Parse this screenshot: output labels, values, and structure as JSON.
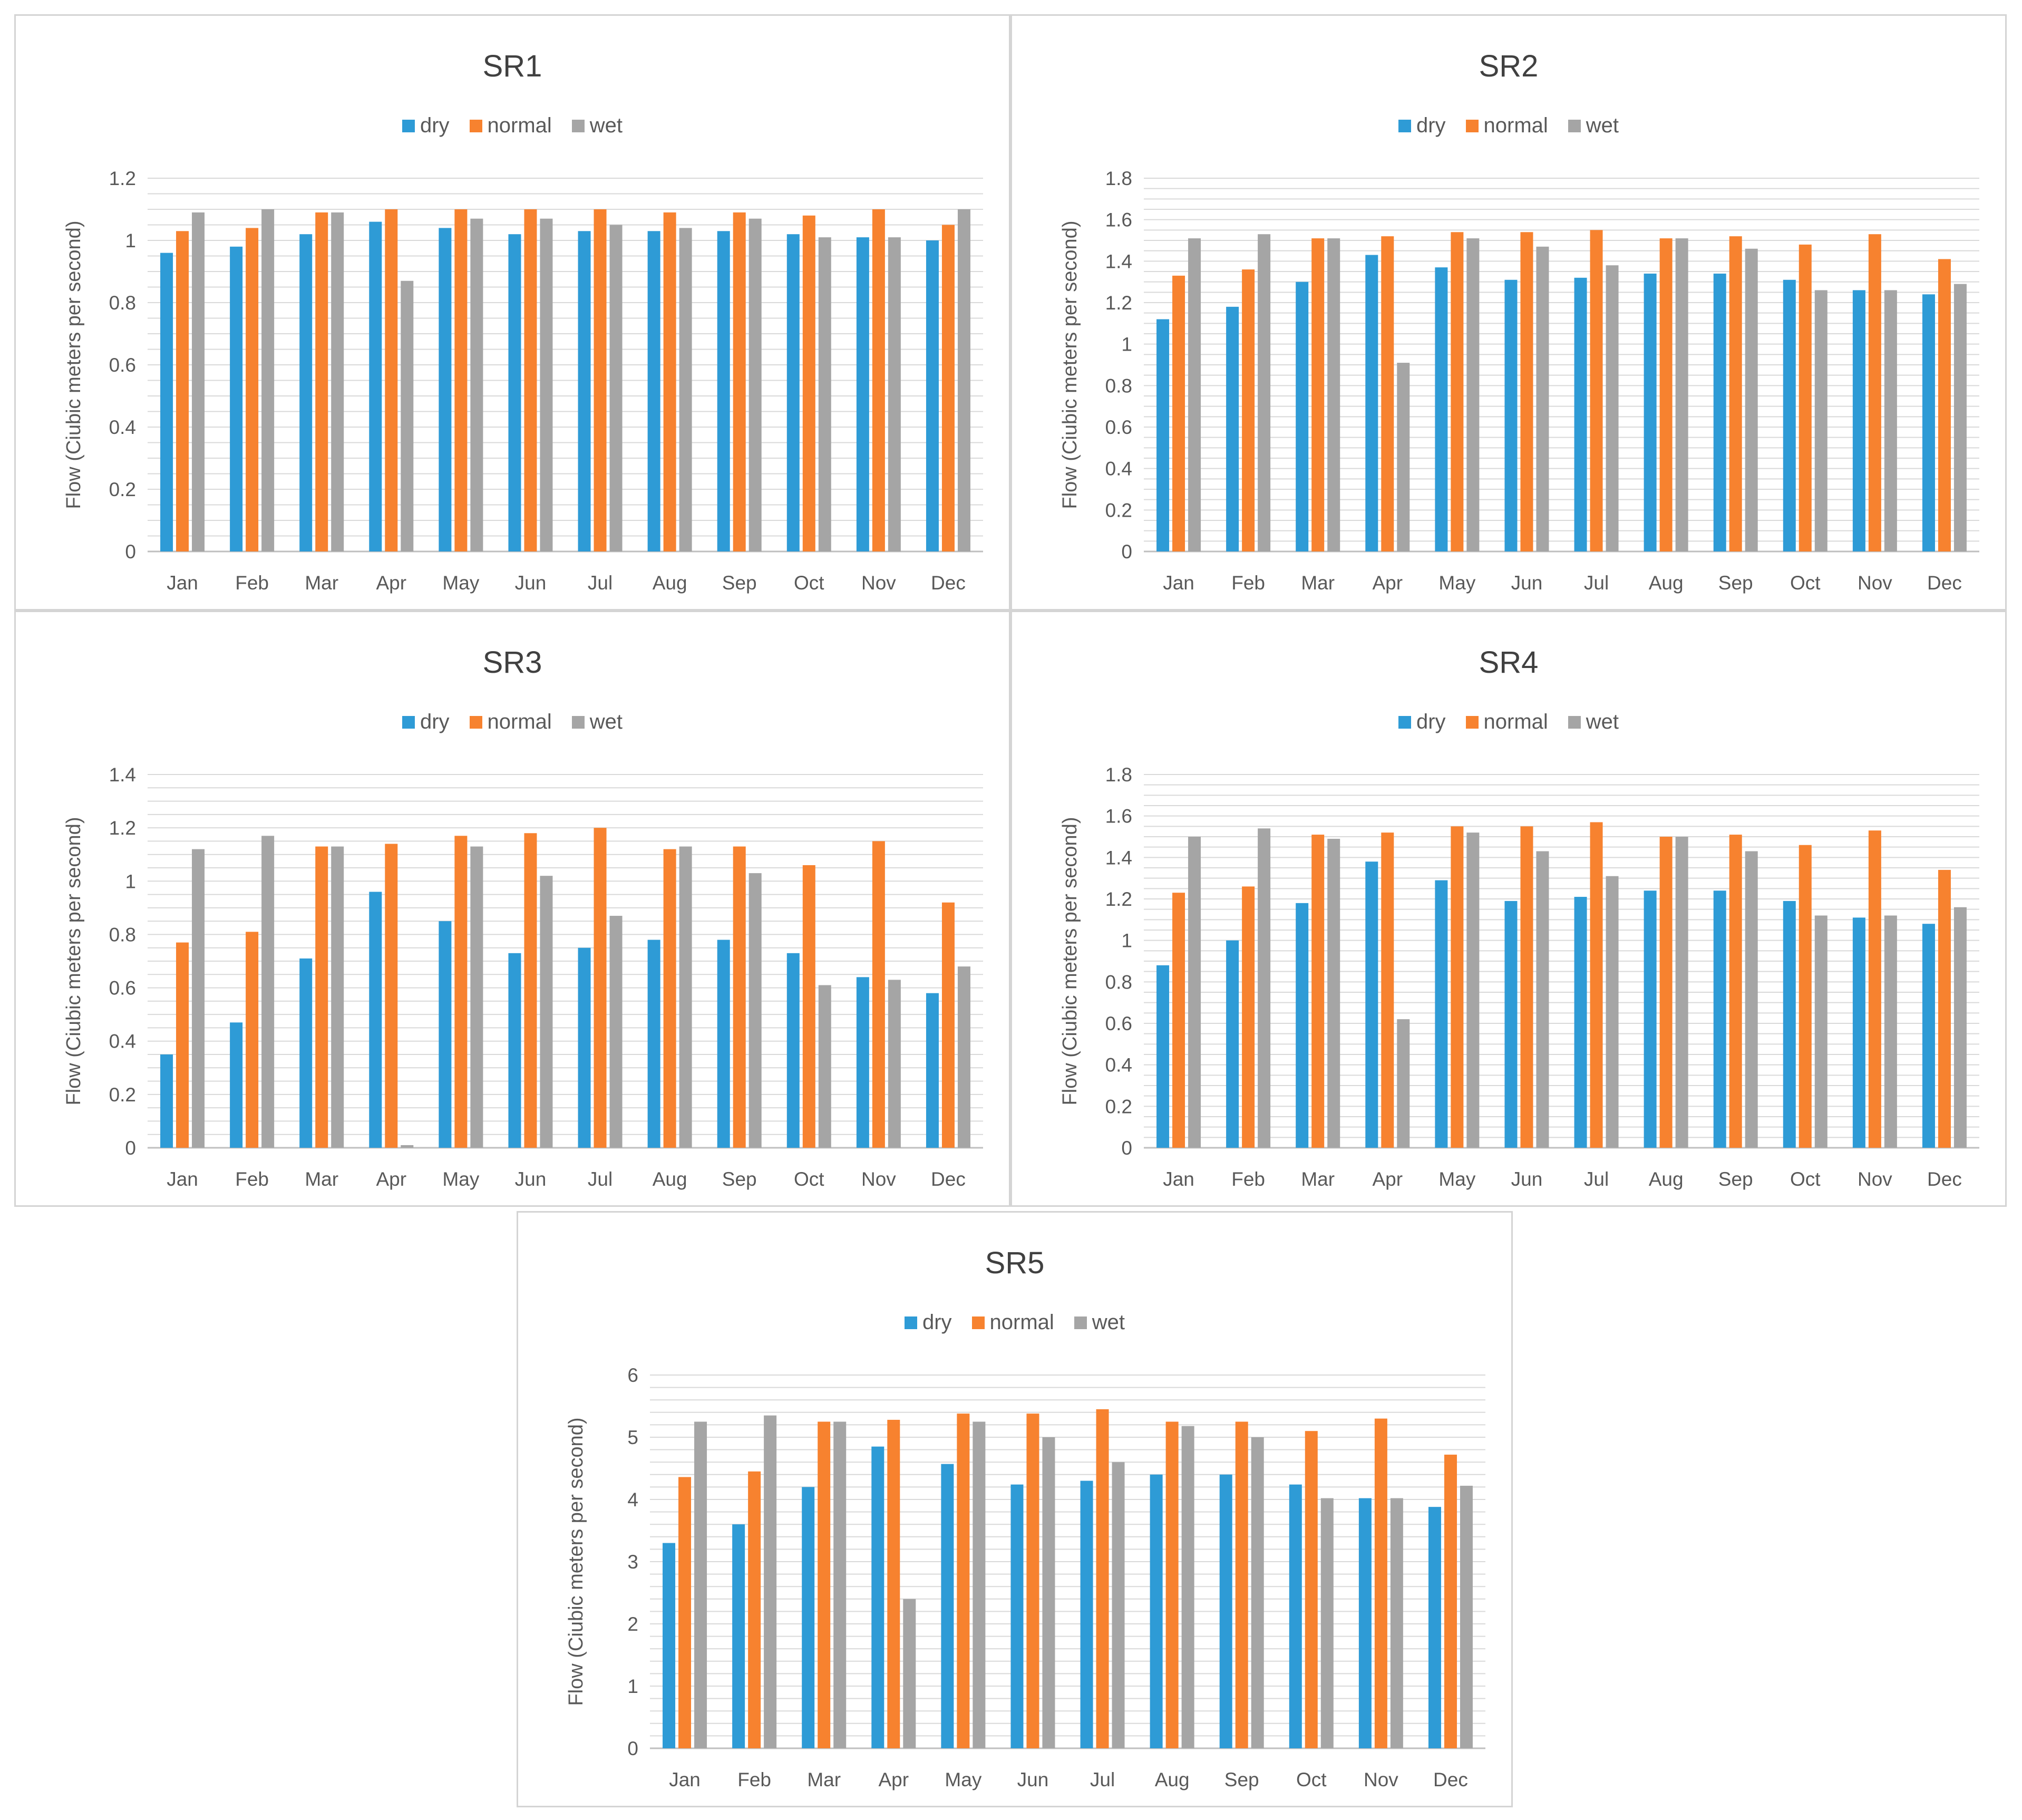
{
  "colors": {
    "dry": "#2e9bd6",
    "normal": "#f7822f",
    "wet": "#a5a5a5",
    "grid": "#d9d9d9"
  },
  "chart_data": [
    {
      "type": "bar",
      "title": "SR1",
      "categories": [
        "Jan",
        "Feb",
        "Mar",
        "Apr",
        "May",
        "Jun",
        "Jul",
        "Aug",
        "Sep",
        "Oct",
        "Nov",
        "Dec"
      ],
      "series": [
        {
          "name": "dry",
          "values": [
            0.96,
            0.98,
            1.02,
            1.06,
            1.04,
            1.02,
            1.03,
            1.03,
            1.03,
            1.02,
            1.01,
            1.0
          ]
        },
        {
          "name": "normal",
          "values": [
            1.03,
            1.04,
            1.09,
            1.1,
            1.1,
            1.1,
            1.1,
            1.09,
            1.09,
            1.08,
            1.1,
            1.05
          ]
        },
        {
          "name": "wet",
          "values": [
            1.09,
            1.1,
            1.09,
            0.87,
            1.07,
            1.07,
            1.05,
            1.04,
            1.07,
            1.01,
            1.01,
            1.1
          ]
        }
      ],
      "ylabel": "Flow (Ciubic meters per second)",
      "ylim": [
        0,
        1.2
      ],
      "yticks": [
        "0",
        "0.2",
        "0.4",
        "0.6",
        "0.8",
        "1",
        "1.2"
      ],
      "minor_step": 0.05,
      "legend": "top",
      "grid": true
    },
    {
      "type": "bar",
      "title": "SR2",
      "categories": [
        "Jan",
        "Feb",
        "Mar",
        "Apr",
        "May",
        "Jun",
        "Jul",
        "Aug",
        "Sep",
        "Oct",
        "Nov",
        "Dec"
      ],
      "series": [
        {
          "name": "dry",
          "values": [
            1.12,
            1.18,
            1.3,
            1.43,
            1.37,
            1.31,
            1.32,
            1.34,
            1.34,
            1.31,
            1.26,
            1.24
          ]
        },
        {
          "name": "normal",
          "values": [
            1.33,
            1.36,
            1.51,
            1.52,
            1.54,
            1.54,
            1.55,
            1.51,
            1.52,
            1.48,
            1.53,
            1.41
          ]
        },
        {
          "name": "wet",
          "values": [
            1.51,
            1.53,
            1.51,
            0.91,
            1.51,
            1.47,
            1.38,
            1.51,
            1.46,
            1.26,
            1.26,
            1.29
          ]
        }
      ],
      "ylabel": "Flow (Ciubic meters per second)",
      "ylim": [
        0,
        1.8
      ],
      "yticks": [
        "0",
        "0.2",
        "0.4",
        "0.6",
        "0.8",
        "1",
        "1.2",
        "1.4",
        "1.6",
        "1.8"
      ],
      "minor_step": 0.05,
      "legend": "top",
      "grid": true
    },
    {
      "type": "bar",
      "title": "SR3",
      "categories": [
        "Jan",
        "Feb",
        "Mar",
        "Apr",
        "May",
        "Jun",
        "Jul",
        "Aug",
        "Sep",
        "Oct",
        "Nov",
        "Dec"
      ],
      "series": [
        {
          "name": "dry",
          "values": [
            0.35,
            0.47,
            0.71,
            0.96,
            0.85,
            0.73,
            0.75,
            0.78,
            0.78,
            0.73,
            0.64,
            0.58
          ]
        },
        {
          "name": "normal",
          "values": [
            0.77,
            0.81,
            1.13,
            1.14,
            1.17,
            1.18,
            1.2,
            1.12,
            1.13,
            1.06,
            1.15,
            0.92
          ]
        },
        {
          "name": "wet",
          "values": [
            1.12,
            1.17,
            1.13,
            0.01,
            1.13,
            1.02,
            0.87,
            1.13,
            1.03,
            0.61,
            0.63,
            0.68
          ]
        }
      ],
      "ylabel": "Flow (Ciubic meters per second)",
      "ylim": [
        0,
        1.4
      ],
      "yticks": [
        "0",
        "0.2",
        "0.4",
        "0.6",
        "0.8",
        "1",
        "1.2",
        "1.4"
      ],
      "minor_step": 0.05,
      "legend": "top",
      "grid": true
    },
    {
      "type": "bar",
      "title": "SR4",
      "categories": [
        "Jan",
        "Feb",
        "Mar",
        "Apr",
        "May",
        "Jun",
        "Jul",
        "Aug",
        "Sep",
        "Oct",
        "Nov",
        "Dec"
      ],
      "series": [
        {
          "name": "dry",
          "values": [
            0.88,
            1.0,
            1.18,
            1.38,
            1.29,
            1.19,
            1.21,
            1.24,
            1.24,
            1.19,
            1.11,
            1.08
          ]
        },
        {
          "name": "normal",
          "values": [
            1.23,
            1.26,
            1.51,
            1.52,
            1.55,
            1.55,
            1.57,
            1.5,
            1.51,
            1.46,
            1.53,
            1.34
          ]
        },
        {
          "name": "wet",
          "values": [
            1.5,
            1.54,
            1.49,
            0.62,
            1.52,
            1.43,
            1.31,
            1.5,
            1.43,
            1.12,
            1.12,
            1.16
          ]
        }
      ],
      "ylabel": "Flow (Ciubic meters per second)",
      "ylim": [
        0,
        1.8
      ],
      "yticks": [
        "0",
        "0.2",
        "0.4",
        "0.6",
        "0.8",
        "1",
        "1.2",
        "1.4",
        "1.6",
        "1.8"
      ],
      "minor_step": 0.05,
      "legend": "top",
      "grid": true
    },
    {
      "type": "bar",
      "title": "SR5",
      "categories": [
        "Jan",
        "Feb",
        "Mar",
        "Apr",
        "May",
        "Jun",
        "Jul",
        "Aug",
        "Sep",
        "Oct",
        "Nov",
        "Dec"
      ],
      "series": [
        {
          "name": "dry",
          "values": [
            3.3,
            3.6,
            4.2,
            4.85,
            4.57,
            4.24,
            4.3,
            4.4,
            4.4,
            4.24,
            4.02,
            3.88
          ]
        },
        {
          "name": "normal",
          "values": [
            4.36,
            4.45,
            5.25,
            5.28,
            5.38,
            5.38,
            5.45,
            5.25,
            5.25,
            5.1,
            5.3,
            4.72
          ]
        },
        {
          "name": "wet",
          "values": [
            5.25,
            5.35,
            5.25,
            2.4,
            5.25,
            5.0,
            4.6,
            5.18,
            5.0,
            4.02,
            4.02,
            4.22
          ]
        }
      ],
      "ylabel": "Flow (Ciubic meters per second)",
      "ylim": [
        0,
        6
      ],
      "yticks": [
        "0",
        "1",
        "2",
        "3",
        "4",
        "5",
        "6"
      ],
      "minor_step": 0.2,
      "legend": "top",
      "grid": true
    }
  ]
}
